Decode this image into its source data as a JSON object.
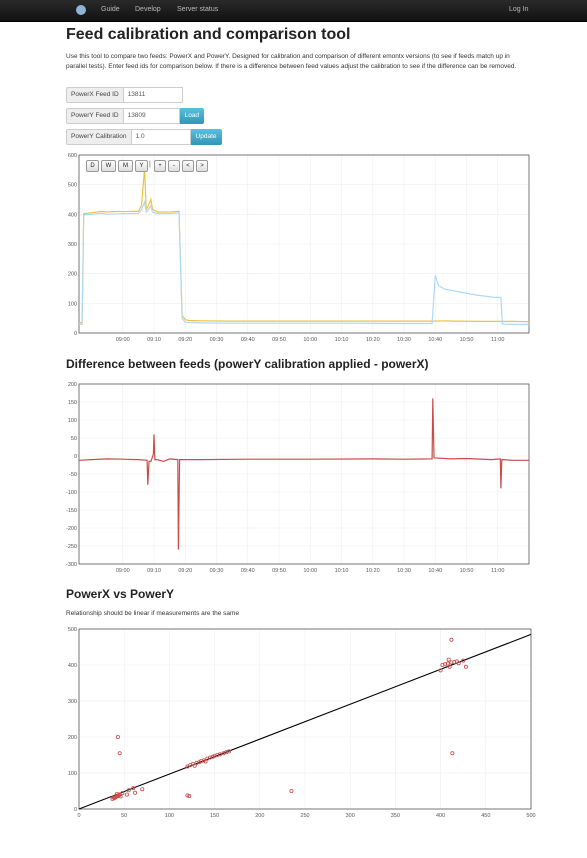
{
  "nav": {
    "logo_icon": "emoncms-logo-icon",
    "links": [
      "Guide",
      "Develop",
      "Server status"
    ],
    "login": "Log In"
  },
  "page": {
    "title": "Feed calibration and comparison tool",
    "intro": "Use this tool to compare two feeds: PowerX and PowerY. Designed for calibration and comparison of different emontx versions (to see if feeds match up in parallel tests). Enter feed ids for comparison below. If there is a difference between feed values adjust the calibration to see if the difference can be removed."
  },
  "form": {
    "powerx_label": "PowerX Feed ID",
    "powerx_value": "13811",
    "powery_label": "PowerY Feed ID",
    "powery_value": "13809",
    "load_button": "Load",
    "calibration_label": "PowerY Calibration",
    "calibration_value": "1.0",
    "update_button": "Update"
  },
  "controls": [
    "D",
    "W",
    "M",
    "Y",
    "+",
    "-",
    "<",
    ">"
  ],
  "colors": {
    "powerx": "#edc240",
    "powery": "#afd8f8",
    "difference": "#cb4b4b",
    "scatter": "#cb4b4b",
    "fit": "#000000",
    "button": "#49afcd"
  },
  "sections": {
    "difference_title": "Difference between feeds (powerY calibration applied - powerX)",
    "scatter_title": "PowerX vs PowerY",
    "scatter_caption": "Relationship should be linear if measurements are the same"
  },
  "chart_data": [
    {
      "type": "line",
      "x_ticks": [
        "09:00",
        "09:10",
        "09:20",
        "09:30",
        "09:40",
        "09:50",
        "10:00",
        "10:10",
        "10:20",
        "10:30",
        "10:40",
        "10:50",
        "11:00"
      ],
      "y_ticks": [
        "0",
        "100",
        "200",
        "300",
        "400",
        "500",
        "600"
      ],
      "ylim": [
        0,
        600
      ],
      "xlim_minutes": [
        -14,
        130
      ],
      "series": [
        {
          "points": [
            [
              -14,
              35
            ],
            [
              -13,
              35
            ],
            [
              -12.5,
              402
            ],
            [
              -10,
              405
            ],
            [
              -7,
              410
            ],
            [
              -5,
              408
            ],
            [
              -1,
              410
            ],
            [
              0,
              409
            ],
            [
              2,
              410
            ],
            [
              5,
              410
            ],
            [
              6,
              430
            ],
            [
              7,
              555
            ],
            [
              7.5,
              415
            ],
            [
              8,
              425
            ],
            [
              9,
              450
            ],
            [
              9.5,
              418
            ],
            [
              11,
              408
            ],
            [
              15,
              408
            ],
            [
              18,
              410
            ],
            [
              19,
              60
            ],
            [
              20,
              45
            ],
            [
              21,
              42
            ],
            [
              25,
              41
            ],
            [
              35,
              40
            ],
            [
              50,
              40
            ],
            [
              70,
              40
            ],
            [
              90,
              40
            ],
            [
              99,
              40
            ],
            [
              104,
              41
            ],
            [
              105,
              40
            ],
            [
              106,
              40
            ],
            [
              114,
              39
            ],
            [
              125,
              39
            ],
            [
              130,
              38
            ]
          ]
        },
        {
          "points": [
            [
              -14,
              30
            ],
            [
              -13,
              30
            ],
            [
              -12.5,
              398
            ],
            [
              -10,
              400
            ],
            [
              -7,
              403
            ],
            [
              -5,
              400
            ],
            [
              0,
              402
            ],
            [
              5,
              403
            ],
            [
              6,
              415
            ],
            [
              7,
              442
            ],
            [
              7.5,
              408
            ],
            [
              8,
              412
            ],
            [
              9,
              430
            ],
            [
              9.5,
              408
            ],
            [
              11,
              402
            ],
            [
              15,
              402
            ],
            [
              18,
              405
            ],
            [
              19,
              50
            ],
            [
              20,
              36
            ],
            [
              25,
              34
            ],
            [
              35,
              33
            ],
            [
              50,
              33
            ],
            [
              70,
              33
            ],
            [
              90,
              32
            ],
            [
              99,
              32
            ],
            [
              100,
              195
            ],
            [
              101,
              160
            ],
            [
              103,
              148
            ],
            [
              108,
              138
            ],
            [
              113,
              128
            ],
            [
              119,
              120
            ],
            [
              121,
              120
            ],
            [
              121.5,
              30
            ],
            [
              125,
              29
            ],
            [
              130,
              29
            ]
          ]
        }
      ]
    },
    {
      "type": "line",
      "x_ticks": [
        "09:00",
        "09:10",
        "09:20",
        "09:30",
        "09:40",
        "09:50",
        "10:00",
        "10:10",
        "10:20",
        "10:30",
        "10:40",
        "10:50",
        "11:00"
      ],
      "y_ticks": [
        "200",
        "150",
        "100",
        "50",
        "0",
        "-50",
        "-100",
        "-150",
        "-200",
        "-250",
        "-300"
      ],
      "ylim": [
        -300,
        200
      ],
      "xlim_minutes": [
        -14,
        130
      ],
      "series": [
        {
          "points": [
            [
              -14,
              -12
            ],
            [
              -10,
              -10
            ],
            [
              -5,
              -8
            ],
            [
              0,
              -9
            ],
            [
              5,
              -10
            ],
            [
              7.8,
              -12
            ],
            [
              8,
              -80
            ],
            [
              8.4,
              -15
            ],
            [
              9,
              -15
            ],
            [
              9.8,
              5
            ],
            [
              10,
              60
            ],
            [
              10.3,
              -10
            ],
            [
              11,
              -10
            ],
            [
              13,
              -15
            ],
            [
              15,
              -8
            ],
            [
              17.6,
              -10
            ],
            [
              17.8,
              -260
            ],
            [
              18.2,
              -10
            ],
            [
              25,
              -10
            ],
            [
              40,
              -9
            ],
            [
              60,
              -9
            ],
            [
              80,
              -8
            ],
            [
              90,
              -9
            ],
            [
              99,
              -8
            ],
            [
              99.2,
              160
            ],
            [
              99.6,
              -5
            ],
            [
              105,
              -8
            ],
            [
              110,
              -7
            ],
            [
              118,
              -10
            ],
            [
              120.8,
              -8
            ],
            [
              121,
              -90
            ],
            [
              121.3,
              -10
            ],
            [
              125,
              -12
            ],
            [
              130,
              -12
            ]
          ]
        }
      ]
    },
    {
      "type": "scatter",
      "x_ticks": [
        "0",
        "50",
        "100",
        "150",
        "200",
        "250",
        "300",
        "350",
        "400",
        "450",
        "500"
      ],
      "y_ticks": [
        "0",
        "100",
        "200",
        "300",
        "400",
        "500"
      ],
      "xlim": [
        0,
        500
      ],
      "ylim": [
        0,
        500
      ],
      "fit_line": [
        [
          0,
          -2
        ],
        [
          500,
          485
        ]
      ],
      "points": [
        [
          37,
          28
        ],
        [
          39,
          30
        ],
        [
          40,
          32
        ],
        [
          41,
          34
        ],
        [
          42,
          35
        ],
        [
          43,
          36
        ],
        [
          44,
          38
        ],
        [
          45,
          40
        ],
        [
          42,
          42
        ],
        [
          38,
          33
        ],
        [
          46,
          35
        ],
        [
          48,
          44
        ],
        [
          55,
          52
        ],
        [
          53,
          40
        ],
        [
          60,
          58
        ],
        [
          62,
          45
        ],
        [
          70,
          55
        ],
        [
          43,
          200
        ],
        [
          45,
          155
        ],
        [
          120,
          38
        ],
        [
          122,
          36
        ],
        [
          120,
          118
        ],
        [
          123,
          122
        ],
        [
          126,
          125
        ],
        [
          128,
          120
        ],
        [
          130,
          128
        ],
        [
          133,
          130
        ],
        [
          135,
          133
        ],
        [
          138,
          135
        ],
        [
          140,
          132
        ],
        [
          142,
          140
        ],
        [
          145,
          143
        ],
        [
          148,
          145
        ],
        [
          150,
          148
        ],
        [
          153,
          150
        ],
        [
          156,
          152
        ],
        [
          160,
          155
        ],
        [
          163,
          158
        ],
        [
          166,
          160
        ],
        [
          235,
          50
        ],
        [
          400,
          385
        ],
        [
          402,
          400
        ],
        [
          405,
          402
        ],
        [
          408,
          404
        ],
        [
          410,
          395
        ],
        [
          412,
          407
        ],
        [
          415,
          408
        ],
        [
          418,
          410
        ],
        [
          420,
          405
        ],
        [
          425,
          412
        ],
        [
          428,
          395
        ],
        [
          412,
          470
        ],
        [
          413,
          155
        ],
        [
          409,
          415
        ]
      ]
    }
  ]
}
